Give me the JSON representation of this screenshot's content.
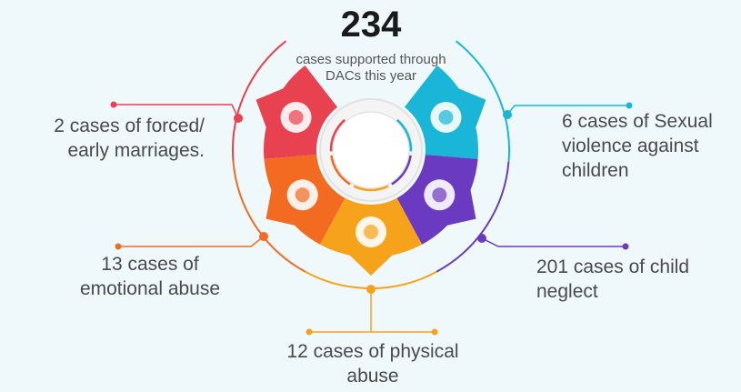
{
  "headline": "234",
  "subtitle": [
    "cases supported through",
    "DACs this year"
  ],
  "segments": [
    {
      "color": "#e8414f",
      "label": [
        "2 cases of forced/",
        "early marriages."
      ]
    },
    {
      "color": "#1ab6d8",
      "label": [
        "6 cases of Sexual",
        "violence against",
        "children"
      ]
    },
    {
      "color": "#6a3bc0",
      "label": [
        "201 cases of child",
        "neglect"
      ]
    },
    {
      "color": "#f7a21b",
      "label": [
        "12 cases of physical",
        "abuse"
      ]
    },
    {
      "color": "#f26b21",
      "label": [
        "13 cases of",
        "emotional abuse"
      ]
    }
  ]
}
